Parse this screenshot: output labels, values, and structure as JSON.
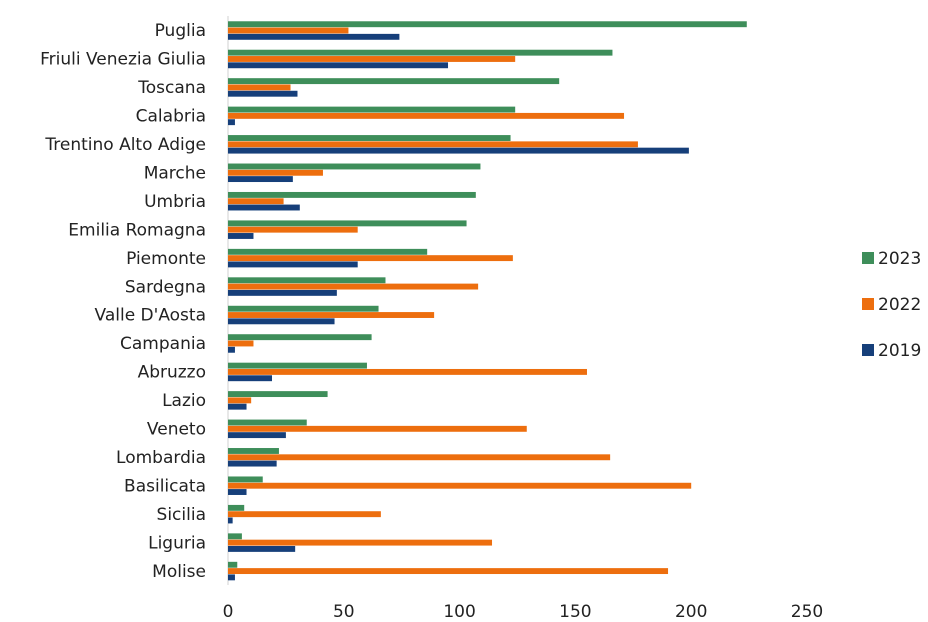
{
  "chart_data": {
    "type": "bar",
    "orientation": "horizontal",
    "title": "",
    "xlabel": "",
    "ylabel": "",
    "xlim": [
      0,
      250
    ],
    "xticks": [
      0,
      50,
      100,
      150,
      200,
      250
    ],
    "grid": false,
    "legend_position": "right",
    "categories": [
      "Puglia",
      "Friuli Venezia Giulia",
      "Toscana",
      "Calabria",
      "Trentino Alto Adige",
      "Marche",
      "Umbria",
      "Emilia Romagna",
      "Piemonte",
      "Sardegna",
      "Valle D'Aosta",
      "Campania",
      "Abruzzo",
      "Lazio",
      "Veneto",
      "Lombardia",
      "Basilicata",
      "Sicilia",
      "Liguria",
      "Molise"
    ],
    "series": [
      {
        "name": "2023",
        "color": "#3e8e5a",
        "values": [
          224,
          166,
          143,
          124,
          122,
          109,
          107,
          103,
          86,
          68,
          65,
          62,
          60,
          43,
          34,
          22,
          15,
          7,
          6,
          4
        ]
      },
      {
        "name": "2022",
        "color": "#ed6e0e",
        "values": [
          52,
          124,
          27,
          171,
          177,
          41,
          24,
          56,
          123,
          108,
          89,
          11,
          155,
          10,
          129,
          165,
          200,
          66,
          114,
          190
        ]
      },
      {
        "name": "2019",
        "color": "#163f7a",
        "values": [
          74,
          95,
          30,
          3,
          199,
          28,
          31,
          11,
          56,
          47,
          46,
          3,
          19,
          8,
          25,
          21,
          8,
          2,
          29,
          3
        ]
      }
    ]
  }
}
